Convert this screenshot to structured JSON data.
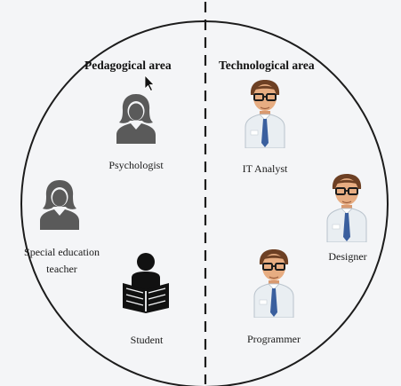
{
  "areas": {
    "left_title": "Pedagogical area",
    "right_title": "Technological area"
  },
  "roles": {
    "psychologist": "Psychologist",
    "special_teacher_line1": "Special education",
    "special_teacher_line2": "teacher",
    "student": "Student",
    "it_analyst": "IT Analyst",
    "designer": "Designer",
    "programmer": "Programmer"
  },
  "colors": {
    "circle": "#1c1c1c",
    "divider": "#1c1c1c",
    "female_icon": "#5a5a5a",
    "student_icon": "#111111",
    "shirt": "#e9eef2",
    "tie": "#3a5f9e",
    "skin": "#e7ad82",
    "hair": "#6d4024",
    "background": "#f4f5f7"
  },
  "icons": {
    "female": "female-person-icon",
    "student": "student-reading-icon",
    "male": "businessman-icon"
  }
}
